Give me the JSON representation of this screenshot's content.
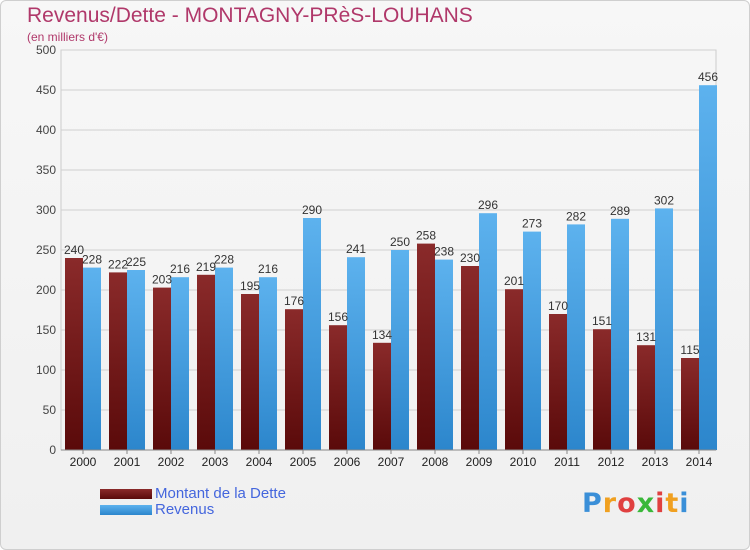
{
  "header": {
    "title": "Revenus/Dette - MONTAGNY-PRèS-LOUHANS",
    "subtitle": "(en milliers d'€)"
  },
  "colors": {
    "dette": "#7a1a1a",
    "revenus": "#4aa3e3",
    "title": "#b0386a",
    "legend_text": "#4466dd"
  },
  "chart_data": {
    "type": "bar",
    "title": "Revenus/Dette - MONTAGNY-PRèS-LOUHANS",
    "ylabel": "(en milliers d'€)",
    "xlabel": "",
    "ylim": [
      0,
      500
    ],
    "yticks": [
      0,
      50,
      100,
      150,
      200,
      250,
      300,
      350,
      400,
      450,
      500
    ],
    "grid": true,
    "legend_position": "bottom-left",
    "categories": [
      "2000",
      "2001",
      "2002",
      "2003",
      "2004",
      "2005",
      "2006",
      "2007",
      "2008",
      "2009",
      "2010",
      "2011",
      "2012",
      "2013",
      "2014"
    ],
    "series": [
      {
        "name": "Montant de la Dette",
        "values": [
          240,
          222,
          203,
          219,
          195,
          176,
          156,
          134,
          258,
          230,
          201,
          170,
          151,
          131,
          115
        ]
      },
      {
        "name": "Revenus",
        "values": [
          228,
          225,
          216,
          228,
          216,
          290,
          241,
          250,
          238,
          296,
          273,
          282,
          289,
          302,
          456
        ]
      }
    ]
  },
  "legend": {
    "items": [
      {
        "label": "Montant de la Dette"
      },
      {
        "label": "Revenus"
      }
    ]
  },
  "logo": {
    "letters": [
      "P",
      "r",
      "o",
      "x",
      "i",
      "t",
      "i"
    ],
    "letter_colors": [
      "#3a8fd8",
      "#f0a020",
      "#e04040",
      "#3ab83a",
      "#e04040",
      "#f0a020",
      "#3a8fd8"
    ]
  }
}
